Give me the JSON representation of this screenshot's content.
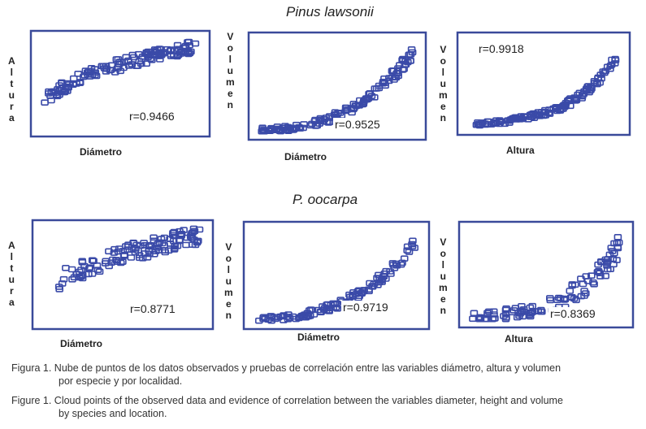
{
  "figure": {
    "species_top": "Pinus lawsonii",
    "species_bottom": "P. oocarpa",
    "caption_es_line1": "Figura 1. Nube de puntos de los datos observados y pruebas de correlación entre las variables diámetro, altura y volumen",
    "caption_es_line2": "por especie y por localidad.",
    "caption_en_line1": "Figure 1. Cloud points of the observed data and evidence of correlation between the variables diameter, height and volume",
    "caption_en_line2": "by species and location.",
    "plot_color": "#3a4aa8"
  },
  "chart_data": [
    {
      "type": "scatter",
      "species": "Pinus lawsonii",
      "xlabel": "Diámetro",
      "ylabel": "Altura",
      "r_label": "r=0.9466",
      "xlim": [
        0,
        1
      ],
      "ylim": [
        0,
        1
      ],
      "trend": "log",
      "n": 140,
      "spread": 0.07
    },
    {
      "type": "scatter",
      "species": "Pinus lawsonii",
      "xlabel": "Diámetro",
      "ylabel": "Volumen",
      "r_label": "r=0.9525",
      "xlim": [
        0,
        1
      ],
      "ylim": [
        0,
        1
      ],
      "trend": "pow",
      "n": 140,
      "spread": 0.05
    },
    {
      "type": "scatter",
      "species": "Pinus lawsonii",
      "xlabel": "Altura",
      "ylabel": "Volumen",
      "r_label": "r=0.9918",
      "xlim": [
        0,
        1
      ],
      "ylim": [
        0,
        1
      ],
      "trend": "exp",
      "n": 140,
      "spread": 0.04
    },
    {
      "type": "scatter",
      "species": "P. oocarpa",
      "xlabel": "Diámetro",
      "ylabel": "Altura",
      "r_label": "r=0.8771",
      "xlim": [
        0,
        1
      ],
      "ylim": [
        0,
        1
      ],
      "trend": "log",
      "n": 120,
      "spread": 0.1
    },
    {
      "type": "scatter",
      "species": "P. oocarpa",
      "xlabel": "Diámetro",
      "ylabel": "Volumen",
      "r_label": "r=0.9719",
      "xlim": [
        0,
        1
      ],
      "ylim": [
        0,
        1
      ],
      "trend": "pow",
      "n": 120,
      "spread": 0.05
    },
    {
      "type": "scatter",
      "species": "P. oocarpa",
      "xlabel": "Altura",
      "ylabel": "Volumen",
      "r_label": "r=0.8369",
      "xlim": [
        0,
        1
      ],
      "ylim": [
        0,
        1
      ],
      "trend": "exp",
      "n": 110,
      "spread": 0.1
    }
  ]
}
